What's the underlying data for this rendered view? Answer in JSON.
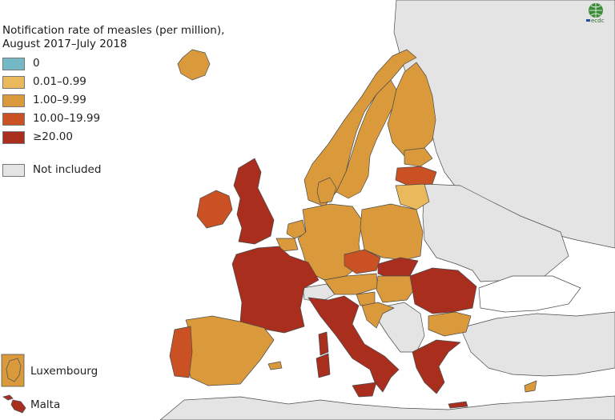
{
  "title": {
    "line1": "Notification rate of measles (per million),",
    "line2": "August 2017–July 2018"
  },
  "legend": [
    {
      "label": "0",
      "color": "#74b9c6"
    },
    {
      "label": "0.01–0.99",
      "color": "#eab95c"
    },
    {
      "label": "1.00–9.99",
      "color": "#da9a3c"
    },
    {
      "label": "10.00–19.99",
      "color": "#c95124"
    },
    {
      "label": "≥20.00",
      "color": "#a92e1e"
    },
    {
      "label": "Not included",
      "color": "#e4e4e4"
    }
  ],
  "insets": {
    "luxembourg": "Luxembourg",
    "malta": "Malta"
  },
  "logo": {
    "text": "ecdc"
  },
  "colors": {
    "sea": "#ffffff",
    "border": "#4a4a4a",
    "not_included": "#e4e4e4"
  },
  "countries": [
    {
      "name": "Iceland",
      "class": "1.00–9.99"
    },
    {
      "name": "Norway",
      "class": "1.00–9.99"
    },
    {
      "name": "Sweden",
      "class": "1.00–9.99"
    },
    {
      "name": "Finland",
      "class": "1.00–9.99"
    },
    {
      "name": "Estonia",
      "class": "1.00–9.99"
    },
    {
      "name": "Latvia",
      "class": "10.00–19.99"
    },
    {
      "name": "Lithuania",
      "class": "0.01–0.99"
    },
    {
      "name": "Denmark",
      "class": "1.00–9.99"
    },
    {
      "name": "Ireland",
      "class": "10.00–19.99"
    },
    {
      "name": "United Kingdom",
      "class": "≥20.00"
    },
    {
      "name": "Netherlands",
      "class": "1.00–9.99"
    },
    {
      "name": "Belgium",
      "class": "1.00–9.99"
    },
    {
      "name": "Germany",
      "class": "1.00–9.99"
    },
    {
      "name": "Poland",
      "class": "1.00–9.99"
    },
    {
      "name": "Czechia",
      "class": "10.00–19.99"
    },
    {
      "name": "Slovakia",
      "class": "≥20.00"
    },
    {
      "name": "Austria",
      "class": "1.00–9.99"
    },
    {
      "name": "Hungary",
      "class": "1.00–9.99"
    },
    {
      "name": "Slovenia",
      "class": "1.00–9.99"
    },
    {
      "name": "Croatia",
      "class": "1.00–9.99"
    },
    {
      "name": "Romania",
      "class": "≥20.00"
    },
    {
      "name": "Bulgaria",
      "class": "1.00–9.99"
    },
    {
      "name": "Greece",
      "class": "≥20.00"
    },
    {
      "name": "Cyprus",
      "class": "1.00–9.99"
    },
    {
      "name": "France",
      "class": "≥20.00"
    },
    {
      "name": "Italy",
      "class": "≥20.00"
    },
    {
      "name": "Spain",
      "class": "1.00–9.99"
    },
    {
      "name": "Portugal",
      "class": "10.00–19.99"
    },
    {
      "name": "Luxembourg",
      "class": "1.00–9.99"
    },
    {
      "name": "Malta",
      "class": "≥20.00"
    },
    {
      "name": "Switzerland",
      "class": "Not included"
    }
  ]
}
